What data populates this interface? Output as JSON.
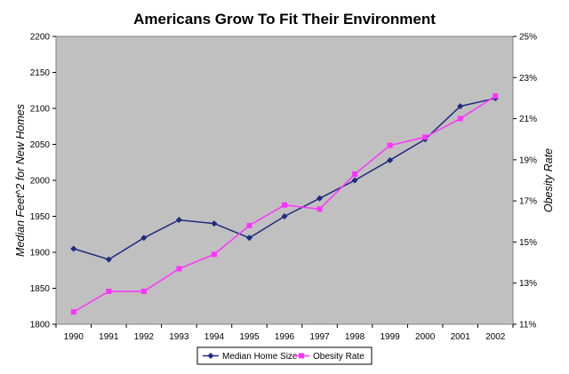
{
  "chart_data": {
    "type": "line",
    "title": "Americans Grow To Fit Their Environment",
    "xlabel": "",
    "ylabel": "Median Feet^2 for New Homes",
    "y2label": "Obesity Rate",
    "categories": [
      "1990",
      "1991",
      "1992",
      "1993",
      "1994",
      "1995",
      "1996",
      "1997",
      "1998",
      "1999",
      "2000",
      "2001",
      "2002"
    ],
    "ylim": [
      1800,
      2200
    ],
    "y_ticks": [
      1800,
      1850,
      1900,
      1950,
      2000,
      2050,
      2100,
      2150,
      2200
    ],
    "y2lim": [
      0.11,
      0.25
    ],
    "y2_ticks": [
      "11%",
      "13%",
      "15%",
      "17%",
      "19%",
      "21%",
      "23%",
      "25%"
    ],
    "y2_tick_values": [
      0.11,
      0.13,
      0.15,
      0.17,
      0.19,
      0.21,
      0.23,
      0.25
    ],
    "series": [
      {
        "name": "Median Home Size",
        "axis": "left",
        "color": "#1f2a80",
        "marker": "diamond",
        "values": [
          1905,
          1890,
          1920,
          1945,
          1940,
          1920,
          1950,
          1975,
          2000,
          2028,
          2057,
          2103,
          2114
        ]
      },
      {
        "name": "Obesity Rate",
        "axis": "right",
        "color": "#ff33ff",
        "marker": "square",
        "values": [
          0.116,
          0.126,
          0.126,
          0.137,
          0.144,
          0.158,
          0.168,
          0.166,
          0.183,
          0.197,
          0.201,
          0.21,
          0.221
        ]
      }
    ],
    "grid": false,
    "plot_background": "#c0c0c0",
    "legend_position": "bottom"
  }
}
